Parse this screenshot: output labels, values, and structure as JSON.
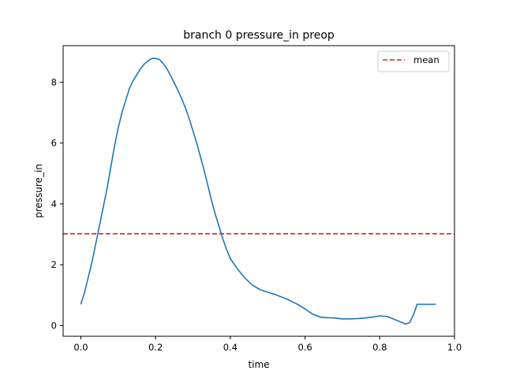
{
  "chart_data": {
    "type": "line",
    "title": "branch 0 pressure_in preop",
    "xlabel": "time",
    "ylabel": "pressure_in",
    "xlim": [
      -0.0475,
      1.0
    ],
    "ylim": [
      -0.35,
      9.2
    ],
    "xticks": [
      0.0,
      0.2,
      0.4,
      0.6,
      0.8,
      1.0
    ],
    "xtick_labels": [
      "0.0",
      "0.2",
      "0.4",
      "0.6",
      "0.8",
      "1.0"
    ],
    "yticks": [
      0,
      2,
      4,
      6,
      8
    ],
    "ytick_labels": [
      "0",
      "2",
      "4",
      "6",
      "8"
    ],
    "grid": false,
    "legend_position": "top-right",
    "series": [
      {
        "name": "",
        "color": "#1f77b4",
        "style": "solid",
        "x": [
          0.0,
          0.01,
          0.02,
          0.03,
          0.04,
          0.05,
          0.06,
          0.07,
          0.08,
          0.09,
          0.1,
          0.11,
          0.12,
          0.13,
          0.14,
          0.15,
          0.16,
          0.17,
          0.18,
          0.19,
          0.2,
          0.21,
          0.22,
          0.23,
          0.24,
          0.25,
          0.26,
          0.27,
          0.28,
          0.29,
          0.3,
          0.31,
          0.32,
          0.33,
          0.34,
          0.35,
          0.36,
          0.37,
          0.38,
          0.39,
          0.4,
          0.42,
          0.44,
          0.46,
          0.48,
          0.5,
          0.52,
          0.55,
          0.58,
          0.6,
          0.62,
          0.64,
          0.66,
          0.68,
          0.7,
          0.72,
          0.74,
          0.76,
          0.78,
          0.8,
          0.82,
          0.84,
          0.86,
          0.87,
          0.88,
          0.89,
          0.9,
          0.91,
          0.92,
          0.93,
          0.94,
          0.95
        ],
        "values": [
          0.7,
          1.1,
          1.6,
          2.1,
          2.7,
          3.3,
          3.9,
          4.5,
          5.2,
          5.9,
          6.5,
          7.0,
          7.4,
          7.8,
          8.05,
          8.25,
          8.45,
          8.6,
          8.7,
          8.78,
          8.78,
          8.75,
          8.62,
          8.45,
          8.22,
          7.98,
          7.72,
          7.45,
          7.15,
          6.8,
          6.4,
          6.0,
          5.55,
          5.1,
          4.6,
          4.1,
          3.65,
          3.25,
          2.85,
          2.5,
          2.2,
          1.85,
          1.55,
          1.32,
          1.18,
          1.1,
          1.02,
          0.88,
          0.7,
          0.55,
          0.38,
          0.28,
          0.26,
          0.25,
          0.22,
          0.22,
          0.23,
          0.25,
          0.28,
          0.32,
          0.3,
          0.2,
          0.1,
          0.05,
          0.1,
          0.35,
          0.7,
          0.7,
          0.7,
          0.7,
          0.7,
          0.7
        ]
      },
      {
        "name": "mean",
        "color": "#d62728",
        "style": "dashed",
        "constant": 3.02
      }
    ]
  }
}
